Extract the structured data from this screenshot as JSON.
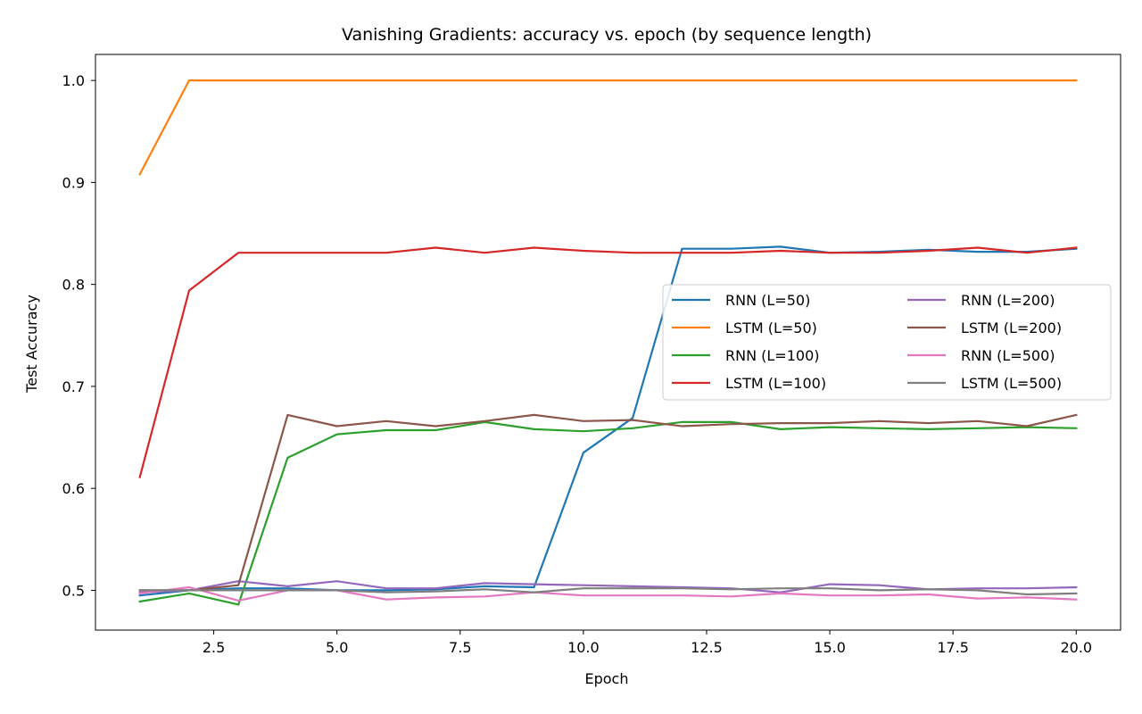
{
  "chart_data": {
    "type": "line",
    "title": "Vanishing Gradients: accuracy vs. epoch (by sequence length)",
    "xlabel": "Epoch",
    "ylabel": "Test Accuracy",
    "xlim": [
      0.1,
      20.9
    ],
    "ylim": [
      0.461,
      1.0255
    ],
    "xticks": [
      2.5,
      5.0,
      7.5,
      10.0,
      12.5,
      15.0,
      17.5,
      20.0
    ],
    "xtick_labels": [
      "2.5",
      "5.0",
      "7.5",
      "10.0",
      "12.5",
      "15.0",
      "17.5",
      "20.0"
    ],
    "yticks": [
      0.5,
      0.6,
      0.7,
      0.8,
      0.9,
      1.0
    ],
    "ytick_labels": [
      "0.5",
      "0.6",
      "0.7",
      "0.8",
      "0.9",
      "1.0"
    ],
    "grid": false,
    "legend_placement": "center-right",
    "legend_columns": 2,
    "x": [
      1,
      2,
      3,
      4,
      5,
      6,
      7,
      8,
      9,
      10,
      11,
      12,
      13,
      14,
      15,
      16,
      17,
      18,
      19,
      20
    ],
    "series": [
      {
        "name": "RNN (L=50)",
        "color": "#1f77b4",
        "values": [
          0.495,
          0.5,
          0.502,
          0.502,
          0.5,
          0.5,
          0.501,
          0.504,
          0.503,
          0.635,
          0.669,
          0.835,
          0.835,
          0.837,
          0.831,
          0.832,
          0.834,
          0.832,
          0.832,
          0.835
        ]
      },
      {
        "name": "LSTM (L=50)",
        "color": "#ff7f0e",
        "values": [
          0.908,
          1.0,
          1.0,
          1.0,
          1.0,
          1.0,
          1.0,
          1.0,
          1.0,
          1.0,
          1.0,
          1.0,
          1.0,
          1.0,
          1.0,
          1.0,
          1.0,
          1.0,
          1.0,
          1.0
        ]
      },
      {
        "name": "RNN (L=100)",
        "color": "#2ca02c",
        "values": [
          0.489,
          0.497,
          0.486,
          0.63,
          0.653,
          0.657,
          0.657,
          0.665,
          0.658,
          0.656,
          0.659,
          0.665,
          0.665,
          0.658,
          0.66,
          0.659,
          0.658,
          0.659,
          0.66,
          0.659
        ]
      },
      {
        "name": "LSTM (L=100)",
        "color": "#d62728",
        "values": [
          0.611,
          0.794,
          0.831,
          0.831,
          0.831,
          0.831,
          0.836,
          0.831,
          0.836,
          0.833,
          0.831,
          0.831,
          0.831,
          0.833,
          0.831,
          0.831,
          0.833,
          0.836,
          0.831,
          0.836
        ]
      },
      {
        "name": "RNN (L=200)",
        "color": "#9467bd",
        "values": [
          0.498,
          0.5,
          0.509,
          0.504,
          0.509,
          0.502,
          0.502,
          0.507,
          0.506,
          0.505,
          0.504,
          0.503,
          0.502,
          0.498,
          0.506,
          0.505,
          0.501,
          0.502,
          0.502,
          0.503
        ]
      },
      {
        "name": "LSTM (L=200)",
        "color": "#8c564b",
        "values": [
          0.5,
          0.5,
          0.505,
          0.672,
          0.661,
          0.666,
          0.661,
          0.666,
          0.672,
          0.666,
          0.667,
          0.661,
          0.663,
          0.664,
          0.664,
          0.666,
          0.664,
          0.666,
          0.661,
          0.672
        ]
      },
      {
        "name": "RNN (L=500)",
        "color": "#e377c2",
        "values": [
          0.497,
          0.503,
          0.49,
          0.5,
          0.5,
          0.491,
          0.493,
          0.494,
          0.498,
          0.495,
          0.495,
          0.495,
          0.494,
          0.497,
          0.495,
          0.495,
          0.496,
          0.492,
          0.493,
          0.491
        ]
      },
      {
        "name": "LSTM (L=500)",
        "color": "#7f7f7f",
        "values": [
          0.5,
          0.5,
          0.5,
          0.5,
          0.5,
          0.498,
          0.499,
          0.501,
          0.498,
          0.502,
          0.502,
          0.502,
          0.501,
          0.502,
          0.502,
          0.5,
          0.501,
          0.5,
          0.496,
          0.497
        ]
      }
    ]
  }
}
